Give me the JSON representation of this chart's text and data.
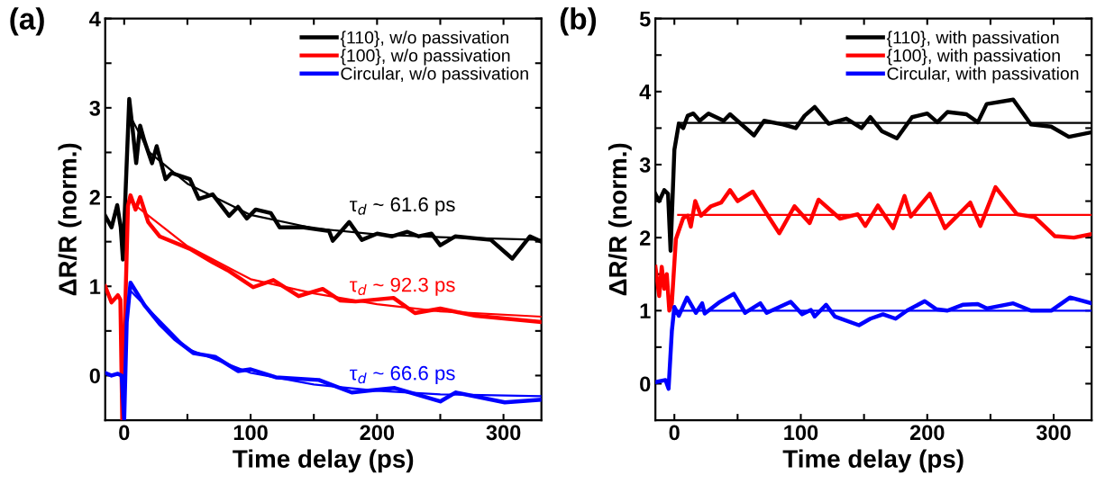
{
  "chart_data": [
    {
      "type": "line",
      "title": "(a)",
      "xlabel": "Time delay (ps)",
      "ylabel": "ΔR/R (norm.)",
      "xlim": [
        -15,
        330
      ],
      "xticks": [
        0,
        {
          "value": 50,
          "label": null
        },
        100,
        {
          "value": 150,
          "label": null
        },
        200,
        {
          "value": 250,
          "label": null
        },
        300
      ],
      "ylim": [
        -0.5,
        4
      ],
      "yticks": [
        0,
        {
          "value": 0.5,
          "label": null
        },
        1,
        {
          "value": 1.5,
          "label": null
        },
        2,
        {
          "value": 2.5,
          "label": null
        },
        3,
        {
          "value": 3.5,
          "label": null
        },
        4
      ],
      "legend": "top right",
      "grid": false,
      "series": [
        {
          "name": "{110}, w/o passivation",
          "color": "#000000",
          "x": [
            -15,
            -10,
            -5.5,
            -2.7,
            -1,
            4,
            6.6,
            9.5,
            12.6,
            16,
            22,
            25.7,
            32.7,
            37.5,
            52,
            59,
            70,
            83,
            90,
            97,
            104,
            116,
            123,
            142,
            162,
            165,
            178,
            188,
            200,
            212,
            224,
            233,
            243,
            250,
            262,
            290,
            307,
            321,
            330
          ],
          "values": [
            1.79,
            1.66,
            1.91,
            1.66,
            1.3,
            3.1,
            2.77,
            2.38,
            2.8,
            2.63,
            2.38,
            2.57,
            2.2,
            2.27,
            2.2,
            1.98,
            2.03,
            1.79,
            1.89,
            1.76,
            1.86,
            1.82,
            1.66,
            1.66,
            1.62,
            1.51,
            1.72,
            1.52,
            1.59,
            1.56,
            1.61,
            1.56,
            1.59,
            1.46,
            1.56,
            1.52,
            1.31,
            1.56,
            1.5
          ]
        },
        {
          "name": "{100}, w/o passivation",
          "color": "#ff0000",
          "x": [
            -15,
            -10,
            -5,
            -3,
            -1.5,
            3,
            5,
            9,
            12.6,
            19,
            28,
            52,
            70,
            83,
            102,
            118,
            138,
            157,
            171,
            183,
            213,
            230,
            250,
            278,
            330
          ],
          "values": [
            1.0,
            0.82,
            0.9,
            0.85,
            -0.5,
            1.9,
            2.02,
            1.86,
            2.0,
            1.72,
            1.56,
            1.42,
            1.27,
            1.17,
            0.99,
            1.07,
            0.89,
            0.97,
            0.84,
            0.83,
            0.87,
            0.7,
            0.75,
            0.67,
            0.6
          ]
        },
        {
          "name": "Circular, w/o passivation",
          "color": "#0000ff",
          "x": [
            -15,
            -10,
            -5,
            -2,
            0,
            2,
            5,
            16,
            28,
            40,
            55,
            72,
            90,
            100,
            120,
            154,
            180,
            193,
            214,
            250,
            262,
            301,
            330
          ],
          "values": [
            0.03,
            0.0,
            0.02,
            0.0,
            -0.5,
            0.6,
            1.04,
            0.79,
            0.58,
            0.41,
            0.25,
            0.21,
            0.05,
            0.07,
            -0.02,
            -0.05,
            -0.19,
            -0.17,
            -0.14,
            -0.29,
            -0.19,
            -0.3,
            -0.27
          ]
        },
        {
          "color": "#000000",
          "x": [
            5,
            20,
            50,
            100,
            150,
            200,
            250,
            330
          ],
          "values": [
            2.9,
            2.5,
            2.15,
            1.8,
            1.65,
            1.58,
            1.55,
            1.52
          ]
        },
        {
          "color": "#ff0000",
          "x": [
            5,
            50,
            100,
            150,
            200,
            250,
            330
          ],
          "values": [
            1.95,
            1.45,
            1.08,
            0.92,
            0.8,
            0.72,
            0.66
          ]
        },
        {
          "color": "#0000ff",
          "x": [
            5,
            50,
            100,
            150,
            200,
            250,
            330
          ],
          "values": [
            0.95,
            0.3,
            0.03,
            -0.1,
            -0.17,
            -0.21,
            -0.23
          ]
        }
      ],
      "annotations": [
        "τ$_{d}$ ~ 61.6 ps",
        "τ$_{d}$ ~ 92.3 ps",
        "τ$_{d}$ ~ 66.6 ps"
      ]
    },
    {
      "type": "line",
      "title": "(b)",
      "xlabel": "Time delay (ps)",
      "ylabel": "ΔR/R (norm.)",
      "xlim": [
        -15,
        330
      ],
      "xticks": [
        0,
        {
          "value": 50,
          "label": null
        },
        100,
        {
          "value": 150,
          "label": null
        },
        200,
        {
          "value": 250,
          "label": null
        },
        300
      ],
      "ylim": [
        -0.5,
        5
      ],
      "yticks": [
        0,
        {
          "value": 0.5,
          "label": null
        },
        1,
        {
          "value": 1.5,
          "label": null
        },
        2,
        {
          "value": 2.5,
          "label": null
        },
        3,
        {
          "value": 3.5,
          "label": null
        },
        4,
        {
          "value": 4.5,
          "label": null
        },
        5
      ],
      "legend": "top right",
      "grid": false,
      "series": [
        {
          "name": "{110}, with passivation",
          "color": "#000000",
          "x": [
            -15,
            -12,
            -8,
            -5,
            -3,
            0,
            3.5,
            7,
            10.6,
            15,
            20,
            27,
            39,
            44,
            63,
            71,
            86,
            96,
            103,
            111,
            122,
            136,
            148,
            155,
            164,
            176,
            188,
            200,
            208,
            216,
            231,
            240,
            247,
            268,
            282,
            298,
            312,
            329
          ],
          "values": [
            2.6,
            2.5,
            2.65,
            2.6,
            1.82,
            3.2,
            3.56,
            3.5,
            3.67,
            3.7,
            3.6,
            3.7,
            3.6,
            3.69,
            3.4,
            3.6,
            3.55,
            3.5,
            3.67,
            3.79,
            3.56,
            3.63,
            3.5,
            3.65,
            3.46,
            3.36,
            3.65,
            3.7,
            3.58,
            3.72,
            3.69,
            3.58,
            3.83,
            3.89,
            3.55,
            3.52,
            3.38,
            3.44
          ]
        },
        {
          "name": "{100}, with passivation",
          "color": "#ff0000",
          "x": [
            -15,
            -12,
            -10,
            -8,
            -6,
            -4,
            -2,
            1.2,
            7,
            10.6,
            13,
            16.5,
            21,
            29,
            37,
            44,
            50,
            62,
            74,
            83,
            95,
            107,
            114,
            131,
            145,
            151,
            161,
            173,
            182,
            187,
            202,
            214,
            225,
            234,
            242,
            254,
            271,
            285,
            301,
            316,
            330
          ],
          "values": [
            1.6,
            1.2,
            1.6,
            1.3,
            1.5,
            1.0,
            1.1,
            1.98,
            2.27,
            2.3,
            2.15,
            2.5,
            2.3,
            2.43,
            2.48,
            2.65,
            2.5,
            2.63,
            2.3,
            2.06,
            2.43,
            2.2,
            2.52,
            2.26,
            2.32,
            2.16,
            2.44,
            2.13,
            2.57,
            2.29,
            2.6,
            2.13,
            2.32,
            2.48,
            2.16,
            2.69,
            2.32,
            2.28,
            2.02,
            2.0,
            2.05
          ]
        },
        {
          "name": "Circular, with passivation",
          "color": "#0000ff",
          "x": [
            -15,
            -7,
            -4.6,
            -2,
            0,
            3.5,
            10,
            17,
            22,
            24,
            36,
            47,
            56,
            68,
            73,
            92,
            101,
            108,
            111,
            120,
            127,
            146,
            155,
            165,
            175,
            184,
            198,
            207,
            216,
            228,
            240,
            247,
            268,
            282,
            298,
            313,
            330
          ],
          "values": [
            0.02,
            0.05,
            -0.07,
            0.72,
            1.05,
            0.93,
            1.18,
            0.97,
            1.1,
            0.96,
            1.12,
            1.23,
            0.97,
            1.1,
            0.97,
            1.12,
            0.95,
            1.01,
            0.92,
            1.08,
            0.92,
            0.8,
            0.89,
            0.95,
            0.89,
            1.0,
            1.13,
            1.02,
            1.0,
            1.08,
            1.09,
            1.03,
            1.1,
            1.0,
            1.0,
            1.18,
            1.1
          ]
        },
        {
          "color": "#000000",
          "x": [
            3,
            330
          ],
          "values": [
            3.57,
            3.57
          ]
        },
        {
          "color": "#ff0000",
          "x": [
            3,
            330
          ],
          "values": [
            2.31,
            2.31
          ]
        },
        {
          "color": "#0000ff",
          "x": [
            3,
            330
          ],
          "values": [
            1.0,
            1.0
          ]
        }
      ]
    }
  ]
}
